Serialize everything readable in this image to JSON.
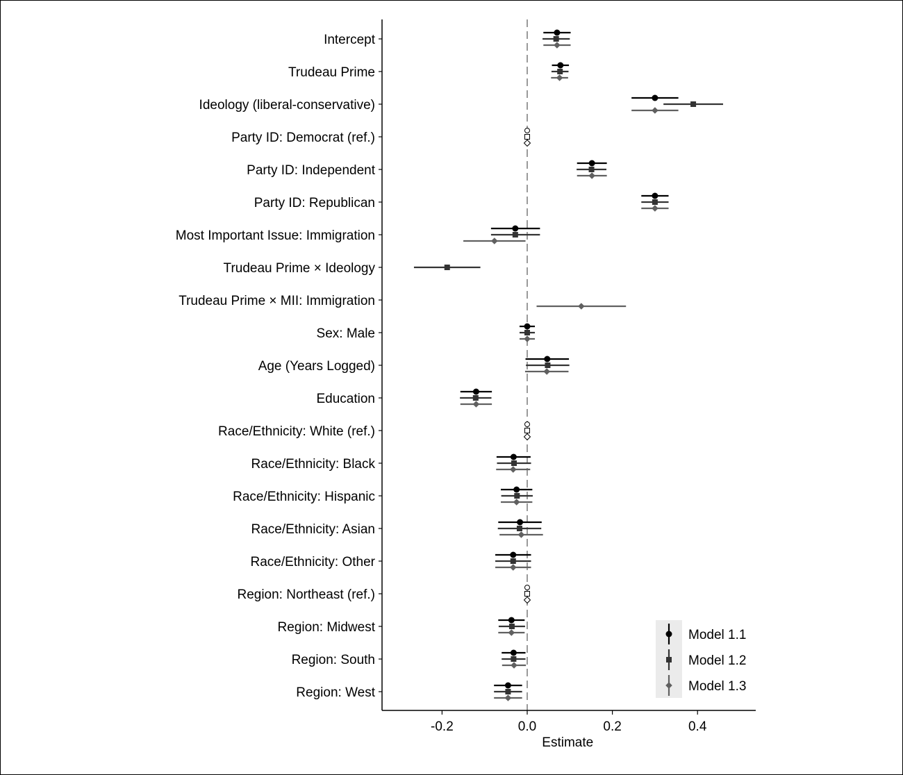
{
  "chart_data": {
    "type": "scatter",
    "subtype": "coefficient-plot",
    "title": "",
    "xlabel": "Estimate",
    "ylabel": "",
    "xlim": [
      -0.35,
      0.54
    ],
    "xticks": [
      -0.2,
      0.0,
      0.2,
      0.4
    ],
    "xtick_labels": [
      "-0.2",
      "0.0",
      "0.2",
      "0.4"
    ],
    "reference_line": 0,
    "grid": false,
    "legend_position": "bottom-right",
    "categories": [
      "Intercept",
      "Trudeau Prime",
      "Ideology (liberal-conservative)",
      "Party ID: Democrat (ref.)",
      "Party ID: Independent",
      "Party ID: Republican",
      "Most Important Issue: Immigration",
      "Trudeau Prime × Ideology",
      "Trudeau Prime × MII: Immigration",
      "Sex: Male",
      "Age (Years Logged)",
      "Education",
      "Race/Ethnicity: White (ref.)",
      "Race/Ethnicity: Black",
      "Race/Ethnicity: Hispanic",
      "Race/Ethnicity: Asian",
      "Race/Ethnicity: Other",
      "Region: Northeast (ref.)",
      "Region: Midwest",
      "Region: South",
      "Region: West"
    ],
    "series": [
      {
        "name": "Model 1.1",
        "marker": "circle",
        "color": "#000000",
        "estimates": [
          0.07,
          0.078,
          0.3,
          0,
          0.152,
          0.3,
          -0.028,
          null,
          null,
          0.0,
          0.047,
          -0.12,
          0,
          -0.032,
          -0.025,
          -0.017,
          -0.033,
          0,
          -0.037,
          -0.032,
          -0.045
        ],
        "lower": [
          0.038,
          0.058,
          0.245,
          0,
          0.117,
          0.268,
          -0.085,
          null,
          null,
          -0.018,
          -0.004,
          -0.157,
          0,
          -0.072,
          -0.062,
          -0.068,
          -0.075,
          0,
          -0.068,
          -0.06,
          -0.078
        ],
        "upper": [
          0.102,
          0.098,
          0.355,
          0,
          0.187,
          0.332,
          0.03,
          null,
          null,
          0.018,
          0.098,
          -0.083,
          0,
          0.008,
          0.012,
          0.034,
          0.009,
          0,
          -0.006,
          -0.004,
          -0.012
        ]
      },
      {
        "name": "Model 1.2",
        "marker": "square",
        "color": "#333333",
        "estimates": [
          0.068,
          0.077,
          0.39,
          0,
          0.151,
          0.3,
          -0.028,
          -0.188,
          null,
          0.0,
          0.048,
          -0.121,
          0,
          -0.031,
          -0.024,
          -0.018,
          -0.033,
          0,
          -0.036,
          -0.032,
          -0.045
        ],
        "lower": [
          0.036,
          0.057,
          0.32,
          0,
          0.116,
          0.268,
          -0.085,
          -0.266,
          null,
          -0.018,
          -0.003,
          -0.158,
          0,
          -0.071,
          -0.061,
          -0.069,
          -0.075,
          0,
          -0.067,
          -0.06,
          -0.078
        ],
        "upper": [
          0.1,
          0.097,
          0.46,
          0,
          0.186,
          0.332,
          0.03,
          -0.11,
          null,
          0.018,
          0.099,
          -0.084,
          0,
          0.009,
          0.013,
          0.033,
          0.009,
          0,
          -0.005,
          -0.004,
          -0.012
        ]
      },
      {
        "name": "Model 1.3",
        "marker": "diamond",
        "color": "#606060",
        "estimates": [
          0.07,
          0.076,
          0.3,
          0,
          0.152,
          0.3,
          -0.077,
          null,
          0.127,
          0.0,
          0.046,
          -0.12,
          0,
          -0.033,
          -0.025,
          -0.014,
          -0.033,
          0,
          -0.037,
          -0.031,
          -0.045
        ],
        "lower": [
          0.038,
          0.056,
          0.245,
          0,
          0.117,
          0.268,
          -0.15,
          null,
          0.022,
          -0.018,
          -0.005,
          -0.157,
          0,
          -0.073,
          -0.062,
          -0.065,
          -0.075,
          0,
          -0.068,
          -0.059,
          -0.078
        ],
        "upper": [
          0.102,
          0.096,
          0.355,
          0,
          0.187,
          0.332,
          -0.004,
          null,
          0.232,
          0.018,
          0.097,
          -0.083,
          0,
          0.007,
          0.012,
          0.037,
          0.009,
          0,
          -0.006,
          -0.003,
          -0.012
        ]
      }
    ],
    "reference_categories": [
      3,
      12,
      17
    ]
  }
}
